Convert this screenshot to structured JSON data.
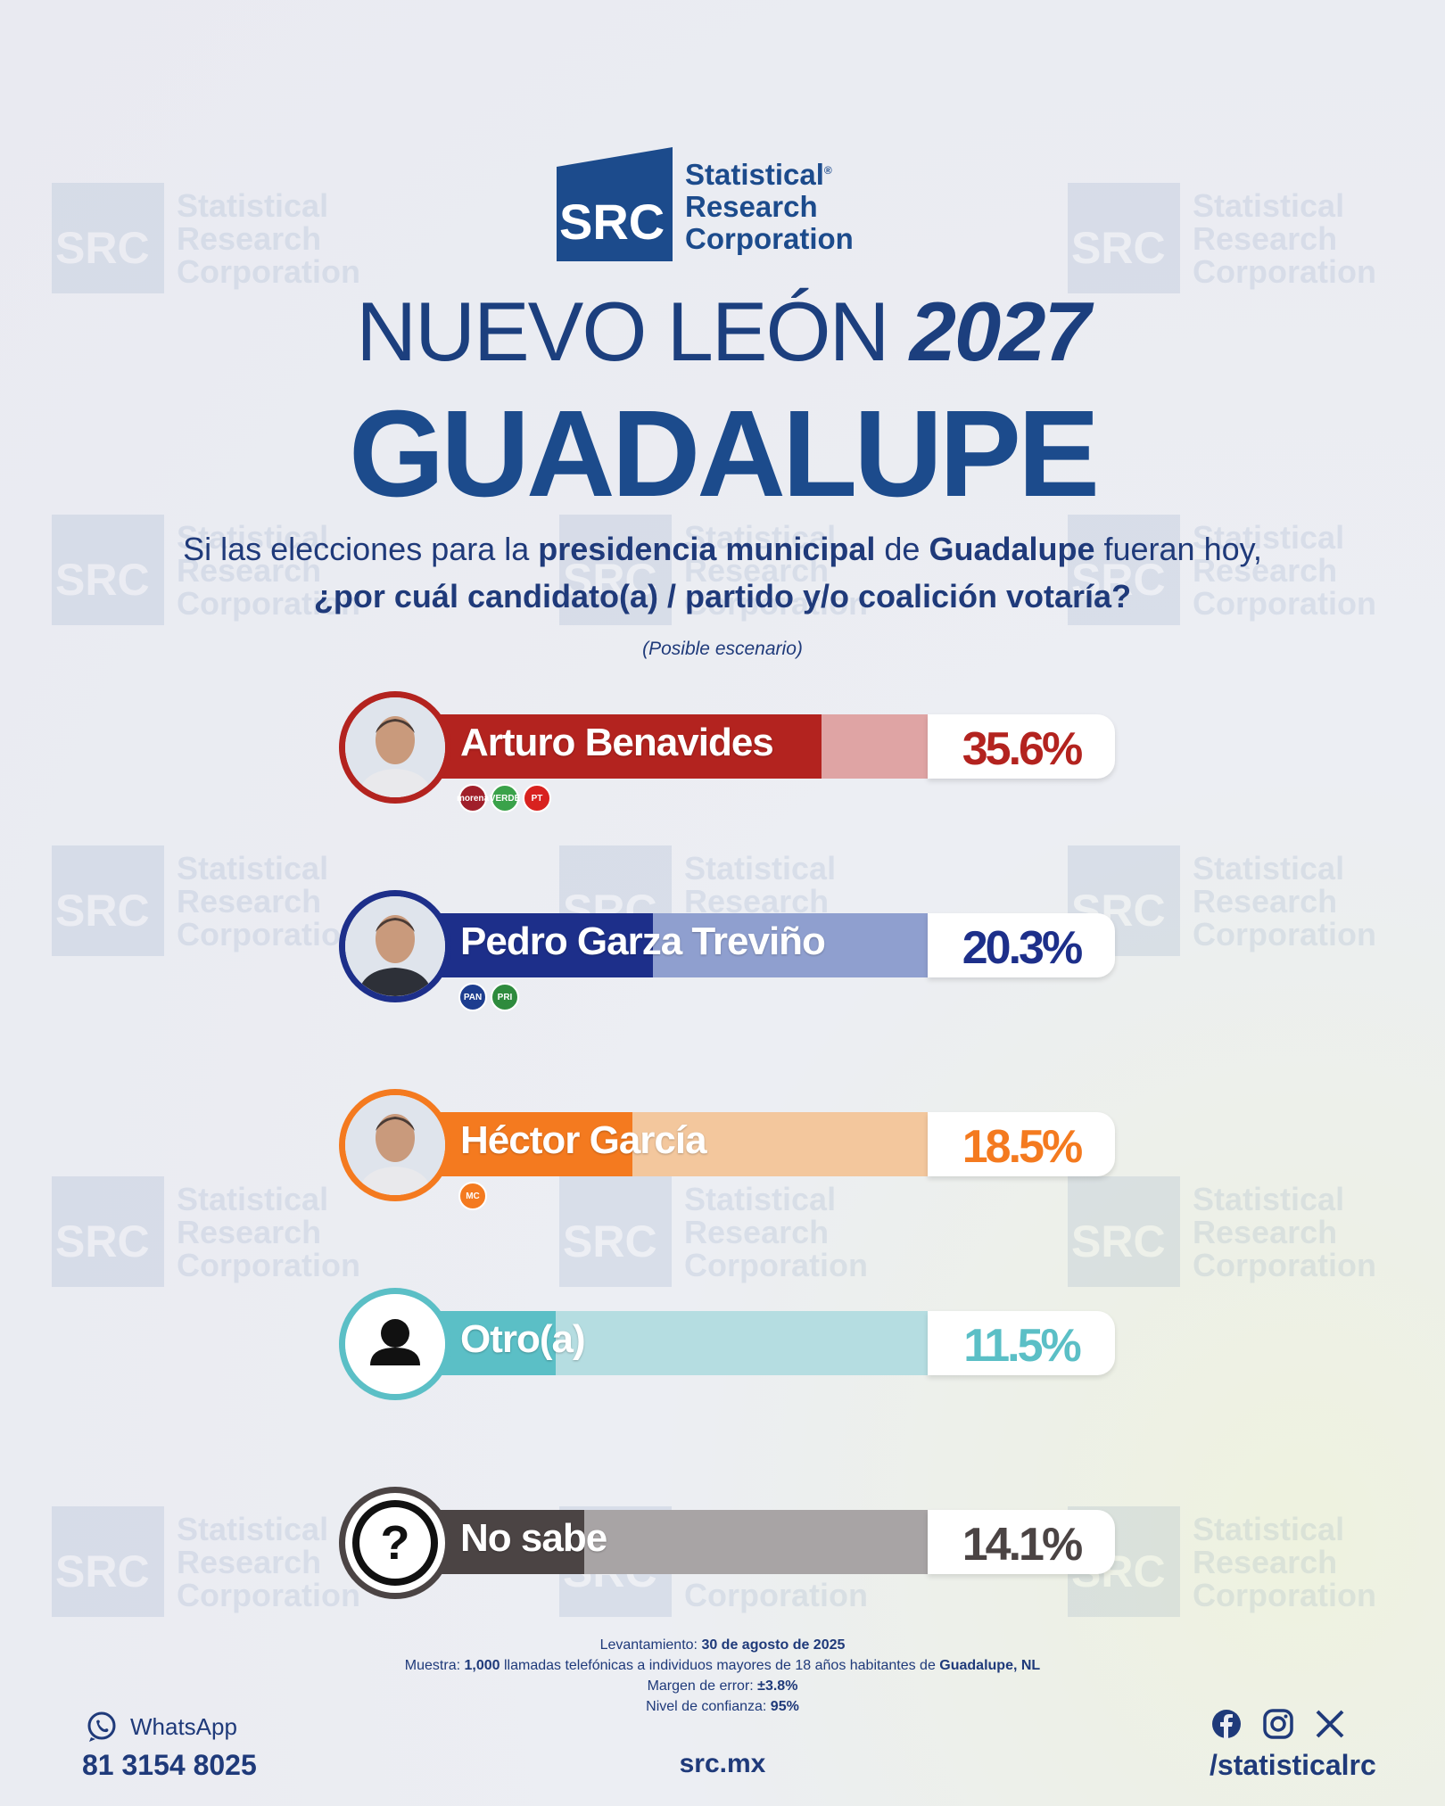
{
  "brand": {
    "mark_text": "SRC",
    "name_lines": [
      "Statistical",
      "Research",
      "Corporation"
    ],
    "registered": "®"
  },
  "header": {
    "region": "NUEVO LEÓN",
    "year": "2027",
    "city": "GUADALUPE"
  },
  "question": {
    "p1": "Si las elecciones para la ",
    "b1": "presidencia municipal",
    "p2": " de ",
    "b2": "Guadalupe",
    "p3": " fueran hoy,",
    "line2": "¿por cuál candidato(a) / partido y/o coalición votaría?",
    "note": "(Posible escenario)"
  },
  "chart_data": {
    "type": "bar",
    "categories": [
      "Arturo Benavides",
      "Pedro Garza Treviño",
      "Héctor García",
      "Otro(a)",
      "No sabe"
    ],
    "values": [
      35.6,
      20.3,
      18.5,
      11.5,
      14.1
    ],
    "labels": [
      "35.6%",
      "20.3%",
      "18.5%",
      "11.5%",
      "14.1%"
    ],
    "colors": [
      "#b3231f",
      "#1d2f8a",
      "#f47a1f",
      "#5bbfc6",
      "#4b4444"
    ],
    "light_colors": [
      "#dfa4a4",
      "#8f9fcf",
      "#f3c79d",
      "#b5dde1",
      "#a8a4a5"
    ],
    "badges": [
      [
        "morena",
        "VERDE",
        "PT"
      ],
      [
        "PAN",
        "PRI"
      ],
      [
        "MC"
      ],
      [],
      []
    ],
    "title": "",
    "xlabel": "",
    "ylabel": "",
    "ylim": [
      0,
      50
    ]
  },
  "footer": {
    "l1_label": "Levantamiento: ",
    "l1_value": "30 de agosto de 2025",
    "l2_label": "Muestra: ",
    "l2_value": "1,000",
    "l2_mid": " llamadas telefónicas a individuos mayores de 18 años habitantes de ",
    "l2_place": "Guadalupe, NL",
    "l3_label": "Margen de error: ",
    "l3_value": "±3.8%",
    "l4_label": "Nivel de confianza: ",
    "l4_value": "95%",
    "whatsapp_label": "WhatsApp",
    "phone": "81 3154 8025",
    "site": "src.mx",
    "handle": "/statisticalrc"
  },
  "icons": [
    "whatsapp-icon",
    "facebook-icon",
    "instagram-icon",
    "x-icon",
    "person-icon",
    "question-icon"
  ]
}
